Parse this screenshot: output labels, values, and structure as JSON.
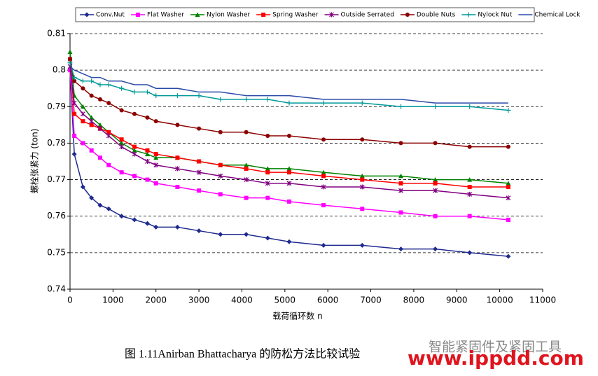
{
  "chart_data": {
    "type": "line",
    "x": [
      0,
      100,
      300,
      500,
      700,
      900,
      1200,
      1500,
      1800,
      2000,
      2500,
      3000,
      3500,
      4100,
      4600,
      5100,
      5900,
      6800,
      7700,
      8500,
      9300,
      10200
    ],
    "series": [
      {
        "name": "Conv.Nut",
        "color": "#1f2a8f",
        "marker": "diamond",
        "values": [
          0.8,
          0.777,
          0.768,
          0.765,
          0.763,
          0.762,
          0.76,
          0.759,
          0.758,
          0.757,
          0.757,
          0.756,
          0.755,
          0.755,
          0.754,
          0.753,
          0.752,
          0.752,
          0.751,
          0.751,
          0.75,
          0.749
        ]
      },
      {
        "name": "Flat Washer",
        "color": "#ff00ff",
        "marker": "square",
        "values": [
          0.8,
          0.782,
          0.78,
          0.778,
          0.776,
          0.774,
          0.772,
          0.771,
          0.77,
          0.769,
          0.768,
          0.767,
          0.766,
          0.765,
          0.765,
          0.764,
          0.763,
          0.762,
          0.761,
          0.76,
          0.76,
          0.759
        ]
      },
      {
        "name": "Nylon Washer",
        "color": "#008000",
        "marker": "triangle",
        "values": [
          0.805,
          0.793,
          0.79,
          0.787,
          0.785,
          0.783,
          0.78,
          0.778,
          0.777,
          0.776,
          0.776,
          0.775,
          0.774,
          0.774,
          0.773,
          0.773,
          0.772,
          0.771,
          0.771,
          0.77,
          0.77,
          0.769
        ]
      },
      {
        "name": "Spring Washer",
        "color": "#ff0000",
        "marker": "square",
        "values": [
          0.803,
          0.788,
          0.786,
          0.785,
          0.784,
          0.783,
          0.781,
          0.779,
          0.778,
          0.777,
          0.776,
          0.775,
          0.774,
          0.773,
          0.772,
          0.772,
          0.771,
          0.77,
          0.769,
          0.769,
          0.768,
          0.768
        ]
      },
      {
        "name": "Outside Serrated",
        "color": "#800080",
        "marker": "cross",
        "values": [
          0.801,
          0.791,
          0.788,
          0.786,
          0.784,
          0.782,
          0.779,
          0.777,
          0.775,
          0.774,
          0.773,
          0.772,
          0.771,
          0.77,
          0.769,
          0.769,
          0.768,
          0.768,
          0.767,
          0.767,
          0.766,
          0.765
        ]
      },
      {
        "name": "Double Nuts",
        "color": "#8b0000",
        "marker": "circle",
        "values": [
          0.803,
          0.797,
          0.795,
          0.793,
          0.792,
          0.791,
          0.789,
          0.788,
          0.787,
          0.786,
          0.785,
          0.784,
          0.783,
          0.783,
          0.782,
          0.782,
          0.781,
          0.781,
          0.78,
          0.78,
          0.779,
          0.779
        ]
      },
      {
        "name": "Nylock Nut",
        "color": "#009999",
        "marker": "plus",
        "values": [
          0.802,
          0.798,
          0.797,
          0.797,
          0.796,
          0.796,
          0.795,
          0.794,
          0.794,
          0.793,
          0.793,
          0.793,
          0.792,
          0.792,
          0.792,
          0.791,
          0.791,
          0.791,
          0.79,
          0.79,
          0.79,
          0.789
        ]
      },
      {
        "name": "Chemical Lock",
        "color": "#2a4aa8",
        "marker": "none",
        "values": [
          0.801,
          0.8,
          0.799,
          0.798,
          0.798,
          0.797,
          0.797,
          0.796,
          0.796,
          0.795,
          0.795,
          0.794,
          0.794,
          0.793,
          0.793,
          0.793,
          0.792,
          0.792,
          0.792,
          0.791,
          0.791,
          0.791
        ]
      }
    ],
    "xlim": [
      0,
      11000
    ],
    "xticks": [
      0,
      1000,
      2000,
      3000,
      4000,
      5000,
      6000,
      7000,
      8000,
      9000,
      10000,
      11000
    ],
    "ylim": [
      0.74,
      0.81
    ],
    "yticks": [
      0.74,
      0.75,
      0.76,
      0.77,
      0.78,
      0.79,
      0.8,
      0.81
    ],
    "grid": true,
    "legend": "top",
    "x_label": "载荷循环数 n",
    "y_label": "螺栓张紧力 (ton)"
  },
  "caption": "图 1.11Anirban Bhattacharya 的防松方法比较试验",
  "watermark": {
    "brand": "智能紧固件及紧固工具",
    "url": "www.ippdd.com"
  }
}
